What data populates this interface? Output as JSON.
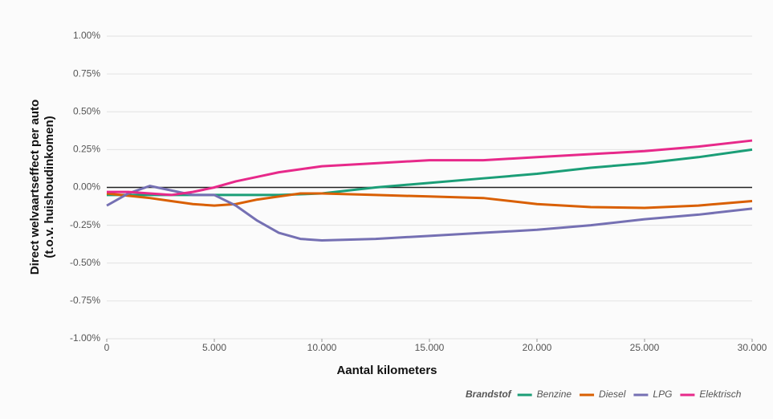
{
  "chart_data": {
    "type": "line",
    "ylabel": [
      "Direct welvaartseffect per auto",
      "(t.o.v. huishoudinkomen)"
    ],
    "xlabel": "Aantal kilometers",
    "legend_title": "Brandstof",
    "legend_position": "bottom-right",
    "grid": true,
    "xlim": [
      0,
      30000
    ],
    "xticks": [
      0,
      {
        "value": 5000,
        "label": "5.000"
      },
      {
        "value": 10000,
        "label": "10.000"
      },
      {
        "value": 15000,
        "label": "15.000"
      },
      {
        "value": 20000,
        "label": "20.000"
      },
      {
        "value": 25000,
        "label": "25.000"
      },
      {
        "value": 30000,
        "label": "30.000"
      }
    ],
    "ylim": [
      -1,
      1
    ],
    "yticks": [
      {
        "value": -1,
        "label": "-1.00%"
      },
      {
        "value": -0.75,
        "label": "-0.75%"
      },
      {
        "value": -0.5,
        "label": "-0.50%"
      },
      {
        "value": -0.25,
        "label": "-0.25%"
      },
      {
        "value": 0,
        "label": "0.00%"
      },
      {
        "value": 0.25,
        "label": "0.25%"
      },
      {
        "value": 0.5,
        "label": "0.50%"
      },
      {
        "value": 0.75,
        "label": "0.75%"
      },
      {
        "value": 1,
        "label": "1.00%"
      }
    ],
    "x": [
      0,
      1000,
      2000,
      3000,
      4000,
      5000,
      6000,
      7000,
      8000,
      9000,
      10000,
      12500,
      15000,
      17500,
      20000,
      22500,
      25000,
      27500,
      30000
    ],
    "series": [
      {
        "name": "Benzine",
        "color": "#1b9e77",
        "values": [
          -0.05,
          -0.05,
          -0.05,
          -0.05,
          -0.05,
          -0.05,
          -0.05,
          -0.05,
          -0.05,
          -0.045,
          -0.04,
          0.0,
          0.03,
          0.06,
          0.09,
          0.13,
          0.16,
          0.2,
          0.25
        ]
      },
      {
        "name": "Diesel",
        "color": "#d95f02",
        "values": [
          -0.04,
          -0.055,
          -0.07,
          -0.09,
          -0.11,
          -0.12,
          -0.11,
          -0.08,
          -0.06,
          -0.04,
          -0.04,
          -0.05,
          -0.06,
          -0.07,
          -0.11,
          -0.13,
          -0.135,
          -0.12,
          -0.09
        ]
      },
      {
        "name": "LPG",
        "color": "#7570b3",
        "values": [
          -0.12,
          -0.04,
          0.01,
          -0.02,
          -0.05,
          -0.05,
          -0.12,
          -0.22,
          -0.3,
          -0.34,
          -0.35,
          -0.34,
          -0.32,
          -0.3,
          -0.28,
          -0.25,
          -0.21,
          -0.18,
          -0.14
        ]
      },
      {
        "name": "Elektrisch",
        "color": "#e7298a",
        "values": [
          -0.03,
          -0.03,
          -0.04,
          -0.05,
          -0.03,
          0.0,
          0.04,
          0.07,
          0.1,
          0.12,
          0.14,
          0.16,
          0.18,
          0.18,
          0.2,
          0.22,
          0.24,
          0.27,
          0.31
        ]
      }
    ]
  }
}
